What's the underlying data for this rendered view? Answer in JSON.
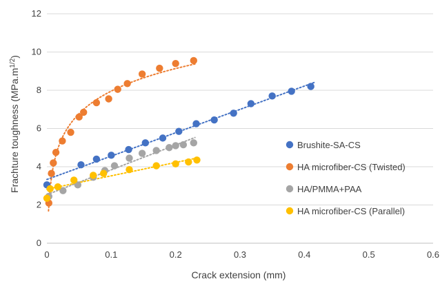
{
  "chart_data": {
    "type": "scatter",
    "title": "",
    "xlabel": "Crack extension (mm)",
    "ylabel_main": "Frachture toughness (MPa.m",
    "ylabel_exp": "1/2",
    "ylabel_close": ")",
    "xlim": [
      0,
      0.6
    ],
    "ylim": [
      0,
      12
    ],
    "xticks": [
      0,
      0.1,
      0.2,
      0.3,
      0.4,
      0.5,
      0.6
    ],
    "xtick_labels": [
      "0",
      "0.1",
      "0.2",
      "0.3",
      "0.4",
      "0.5",
      "0.6"
    ],
    "yticks": [
      0,
      2,
      4,
      6,
      8,
      10,
      12
    ],
    "ytick_labels": [
      "0",
      "2",
      "4",
      "6",
      "8",
      "10",
      "12"
    ],
    "grid": "horizontal",
    "legend_position": "right",
    "series": [
      {
        "name": "Brushite-SA-CS",
        "color": "#4472C4",
        "trend": "linear",
        "trend_x": [
          0.0,
          0.415
        ],
        "x": [
          0.0,
          0.053,
          0.077,
          0.1,
          0.127,
          0.153,
          0.18,
          0.205,
          0.232,
          0.26,
          0.29,
          0.317,
          0.35,
          0.38,
          0.41
        ],
        "y": [
          3.05,
          4.1,
          4.4,
          4.6,
          4.9,
          5.25,
          5.5,
          5.85,
          6.25,
          6.45,
          6.8,
          7.3,
          7.7,
          7.95,
          8.2
        ]
      },
      {
        "name": "HA microfiber-CS (Twisted)",
        "color": "#ED7D31",
        "trend": "log",
        "trend_x": [
          0.0025,
          0.23
        ],
        "x": [
          0.003,
          0.007,
          0.01,
          0.014,
          0.024,
          0.037,
          0.05,
          0.057,
          0.077,
          0.096,
          0.11,
          0.125,
          0.148,
          0.175,
          0.2,
          0.228
        ],
        "y": [
          2.1,
          3.65,
          4.2,
          4.75,
          5.35,
          5.8,
          6.6,
          6.85,
          7.35,
          7.55,
          8.05,
          8.35,
          8.85,
          9.15,
          9.4,
          9.55
        ]
      },
      {
        "name": "HA/PMMA+PAA",
        "color": "#A5A5A5",
        "trend": "linear",
        "trend_x": [
          0.0,
          0.23
        ],
        "x": [
          0.003,
          0.025,
          0.048,
          0.072,
          0.09,
          0.105,
          0.128,
          0.148,
          0.17,
          0.19,
          0.2,
          0.212,
          0.228
        ],
        "y": [
          2.45,
          2.75,
          3.05,
          3.45,
          3.8,
          4.05,
          4.45,
          4.7,
          4.85,
          5.0,
          5.1,
          5.15,
          5.25
        ]
      },
      {
        "name": "HA microfiber-CS (Parallel)",
        "color": "#FFC000",
        "trend": "linear",
        "trend_x": [
          0.0,
          0.235
        ],
        "x": [
          0.0,
          0.005,
          0.017,
          0.042,
          0.072,
          0.088,
          0.128,
          0.17,
          0.2,
          0.22,
          0.233
        ],
        "y": [
          2.35,
          2.85,
          2.95,
          3.3,
          3.55,
          3.65,
          3.85,
          4.05,
          4.15,
          4.25,
          4.35
        ]
      }
    ]
  }
}
